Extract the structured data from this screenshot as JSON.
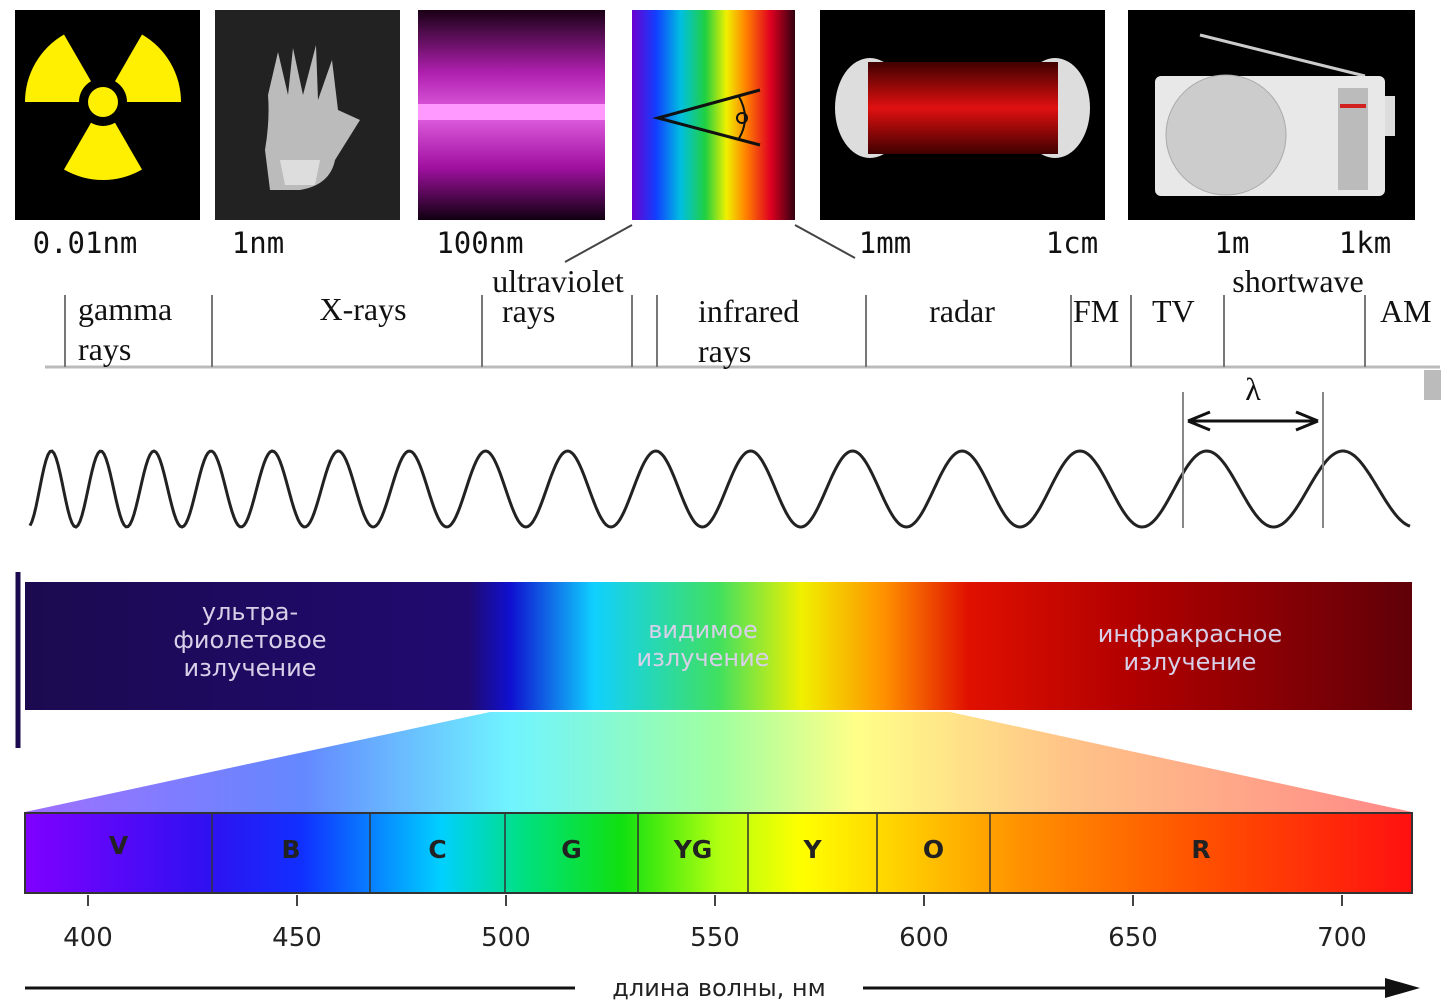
{
  "wavelength_labels": [
    "0.01nm",
    "1nm",
    "100nm",
    "1mm",
    "1cm",
    "1m",
    "1km"
  ],
  "bands": [
    {
      "lines": [
        "gamma",
        "rays"
      ]
    },
    {
      "lines": [
        "X-rays"
      ]
    },
    {
      "lines": [
        "ultraviolet",
        "rays"
      ]
    },
    {
      "lines": [
        "infrared",
        "rays"
      ]
    },
    {
      "lines": [
        "radar"
      ]
    },
    {
      "lines": [
        "FM"
      ]
    },
    {
      "lines": [
        "TV"
      ]
    },
    {
      "lines": [
        "shortwave"
      ]
    },
    {
      "lines": [
        "AM"
      ]
    }
  ],
  "lambda": "λ",
  "spectrum_regions": [
    {
      "lines": [
        "ультра-",
        "фиолетовое",
        "излучение"
      ]
    },
    {
      "lines": [
        "видимое",
        "излучение"
      ]
    },
    {
      "lines": [
        "инфракрасное",
        "излучение"
      ]
    }
  ],
  "visible_colors": [
    "V",
    "B",
    "C",
    "G",
    "YG",
    "Y",
    "O",
    "R"
  ],
  "axis": {
    "ticks": [
      400,
      450,
      500,
      550,
      600,
      650,
      700
    ],
    "label": "длина волны, нм"
  }
}
